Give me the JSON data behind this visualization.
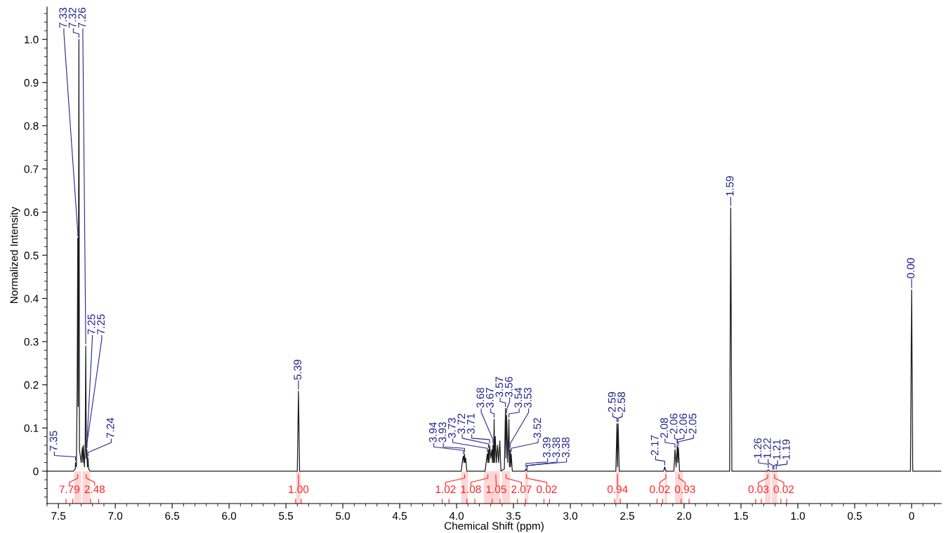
{
  "chart_data": {
    "type": "line",
    "xlabel": "Chemical Shift (ppm)",
    "ylabel": "Normalized Intensity",
    "xlim": [
      7.6,
      -0.26
    ],
    "ylim": [
      -0.075,
      1.075
    ],
    "xticks": [
      7.5,
      {
        "value": 7,
        "label": "7.0"
      },
      6.5,
      {
        "value": 6,
        "label": "6.0"
      },
      5.5,
      {
        "value": 5,
        "label": "5.0"
      },
      4.5,
      {
        "value": 4,
        "label": "4.0"
      },
      3.5,
      {
        "value": 3,
        "label": "3.0"
      },
      2.5,
      {
        "value": 2,
        "label": "2.0"
      },
      1.5,
      {
        "value": 1,
        "label": "1.0"
      },
      0.5,
      0
    ],
    "yticks": [
      0,
      0.1,
      0.2,
      0.3,
      0.4,
      0.5,
      0.6,
      0.7,
      0.8,
      0.9,
      {
        "value": 1,
        "label": "1.0"
      }
    ],
    "grid": false,
    "marker": "none",
    "line_style": "solid",
    "series": [
      {
        "color": "#1a1a1a",
        "x": [
          7.6,
          7.37,
          7.352,
          7.35,
          7.342,
          7.335,
          7.33,
          7.326,
          7.32,
          7.315,
          7.3,
          7.29,
          7.285,
          7.28,
          7.272,
          7.265,
          7.26,
          7.255,
          7.25,
          7.245,
          7.24,
          7.235,
          7.22,
          5.4,
          5.39,
          5.38,
          3.96,
          3.945,
          3.94,
          3.935,
          3.93,
          3.925,
          3.92,
          3.91,
          3.75,
          3.735,
          3.73,
          3.725,
          3.72,
          3.715,
          3.71,
          3.7,
          3.69,
          3.685,
          3.68,
          3.675,
          3.67,
          3.665,
          3.66,
          3.65,
          3.64,
          3.63,
          3.62,
          3.61,
          3.58,
          3.57,
          3.565,
          3.56,
          3.55,
          3.54,
          3.535,
          3.53,
          3.525,
          3.52,
          3.51,
          3.4,
          3.39,
          3.38,
          2.6,
          2.59,
          2.585,
          2.58,
          2.57,
          2.18,
          2.17,
          2.16,
          2.09,
          2.08,
          2.07,
          2.06,
          2.055,
          2.05,
          2.04,
          1.6,
          1.59,
          1.58,
          1.27,
          1.26,
          1.25,
          0.01,
          0.0,
          -0.01,
          -0.26
        ],
        "values": [
          0,
          0,
          0.005,
          0.02,
          0.01,
          0.2,
          0.54,
          0.15,
          1.0,
          0.05,
          0.02,
          0.055,
          0.02,
          0.06,
          0.01,
          0.05,
          0.29,
          0.03,
          0.05,
          0.01,
          0.03,
          0.005,
          0,
          0,
          0.185,
          0,
          0,
          0.03,
          0.035,
          0.02,
          0.04,
          0.02,
          0.03,
          0,
          0,
          0.03,
          0.04,
          0.02,
          0.05,
          0.02,
          0.06,
          0.03,
          0.05,
          0.02,
          0.06,
          0.02,
          0.12,
          0.02,
          0.08,
          0.02,
          0.06,
          0.02,
          0.07,
          0,
          0.005,
          0.145,
          0.03,
          0.13,
          0.02,
          0.12,
          0.01,
          0.05,
          0.01,
          0.04,
          0,
          0,
          0.005,
          0,
          0,
          0.11,
          0.01,
          0.11,
          0,
          0,
          0.01,
          0,
          0,
          0.05,
          0.01,
          0.06,
          0.02,
          0.055,
          0,
          0,
          0.61,
          0,
          0,
          0.003,
          0,
          0,
          0.42,
          0,
          0
        ]
      }
    ],
    "annotations": [
      {
        "text": "7.35",
        "x": 7.35,
        "y": 0.02
      },
      {
        "text": "7.33",
        "x": 7.33,
        "y": 0.54
      },
      {
        "text": "7.32",
        "x": 7.32,
        "y": 1.0
      },
      {
        "text": "7.26",
        "x": 7.26,
        "y": 0.29
      },
      {
        "text": "7.25",
        "x": 7.25,
        "y": 0.05
      },
      {
        "text": "7.25",
        "x": 7.25,
        "y": 0.05
      },
      {
        "text": "7.24",
        "x": 7.24,
        "y": 0.03
      },
      {
        "text": "5.39",
        "x": 5.39,
        "y": 0.185
      },
      {
        "text": "3.94",
        "x": 3.94,
        "y": 0.035
      },
      {
        "text": "3.93",
        "x": 3.93,
        "y": 0.04
      },
      {
        "text": "3.73",
        "x": 3.73,
        "y": 0.04
      },
      {
        "text": "3.72",
        "x": 3.72,
        "y": 0.05
      },
      {
        "text": "3.71",
        "x": 3.71,
        "y": 0.06
      },
      {
        "text": "3.68",
        "x": 3.68,
        "y": 0.06
      },
      {
        "text": "3.67",
        "x": 3.67,
        "y": 0.12
      },
      {
        "text": "3.57",
        "x": 3.57,
        "y": 0.145
      },
      {
        "text": "3.56",
        "x": 3.56,
        "y": 0.13
      },
      {
        "text": "3.54",
        "x": 3.54,
        "y": 0.12
      },
      {
        "text": "3.53",
        "x": 3.53,
        "y": 0.05
      },
      {
        "text": "3.52",
        "x": 3.52,
        "y": 0.04
      },
      {
        "text": "3.39",
        "x": 3.39,
        "y": 0.005
      },
      {
        "text": "3.38",
        "x": 3.38,
        "y": 0.0
      },
      {
        "text": "3.38",
        "x": 3.38,
        "y": 0.0
      },
      {
        "text": "2.59",
        "x": 2.59,
        "y": 0.11
      },
      {
        "text": "2.58",
        "x": 2.58,
        "y": 0.11
      },
      {
        "text": "2.17",
        "x": 2.17,
        "y": 0.01
      },
      {
        "text": "2.08",
        "x": 2.08,
        "y": 0.05
      },
      {
        "text": "2.06",
        "x": 2.06,
        "y": 0.06
      },
      {
        "text": "2.06",
        "x": 2.06,
        "y": 0.06
      },
      {
        "text": "2.05",
        "x": 2.05,
        "y": 0.055
      },
      {
        "text": "1.59",
        "x": 1.59,
        "y": 0.61
      },
      {
        "text": "1.26",
        "x": 1.26,
        "y": 0.003
      },
      {
        "text": "1.22",
        "x": 1.22,
        "y": 0.0
      },
      {
        "text": "1.21",
        "x": 1.21,
        "y": 0.0
      },
      {
        "text": "1.19",
        "x": 1.19,
        "y": 0.0
      },
      {
        "text": "0.00",
        "x": 0.0,
        "y": 0.42
      }
    ],
    "bands": [
      {
        "axis": "x",
        "from": 7.36,
        "to": 7.3,
        "label": "7.79",
        "color": "#ff2020"
      },
      {
        "axis": "x",
        "from": 7.29,
        "to": 7.22,
        "label": "2.48",
        "color": "#ff2020"
      },
      {
        "axis": "x",
        "from": 5.41,
        "to": 5.37,
        "label": "1.00",
        "color": "#ff2020"
      },
      {
        "axis": "x",
        "from": 3.96,
        "to": 3.9,
        "label": "1.02",
        "color": "#ff2020"
      },
      {
        "axis": "x",
        "from": 3.76,
        "to": 3.69,
        "label": "1.08",
        "color": "#ff2020"
      },
      {
        "axis": "x",
        "from": 3.69,
        "to": 3.62,
        "label": "1.05",
        "color": "#ff2020"
      },
      {
        "axis": "x",
        "from": 3.6,
        "to": 3.53,
        "label": "2.07",
        "color": "#ff2020"
      },
      {
        "axis": "x",
        "from": 3.4,
        "to": 3.37,
        "label": "0.02",
        "color": "#ff2020"
      },
      {
        "axis": "x",
        "from": 2.6,
        "to": 2.57,
        "label": "0.94",
        "color": "#ff2020"
      },
      {
        "axis": "x",
        "from": 2.17,
        "to": 2.15,
        "label": "0.02",
        "color": "#ff2020"
      },
      {
        "axis": "x",
        "from": 2.08,
        "to": 2.01,
        "label": "0.93",
        "color": "#ff2020"
      },
      {
        "axis": "x",
        "from": 1.29,
        "to": 1.24,
        "label": "0.03",
        "color": "#ff2020"
      },
      {
        "axis": "x",
        "from": 1.23,
        "to": 1.18,
        "label": "0.02",
        "color": "#ff2020"
      }
    ]
  }
}
